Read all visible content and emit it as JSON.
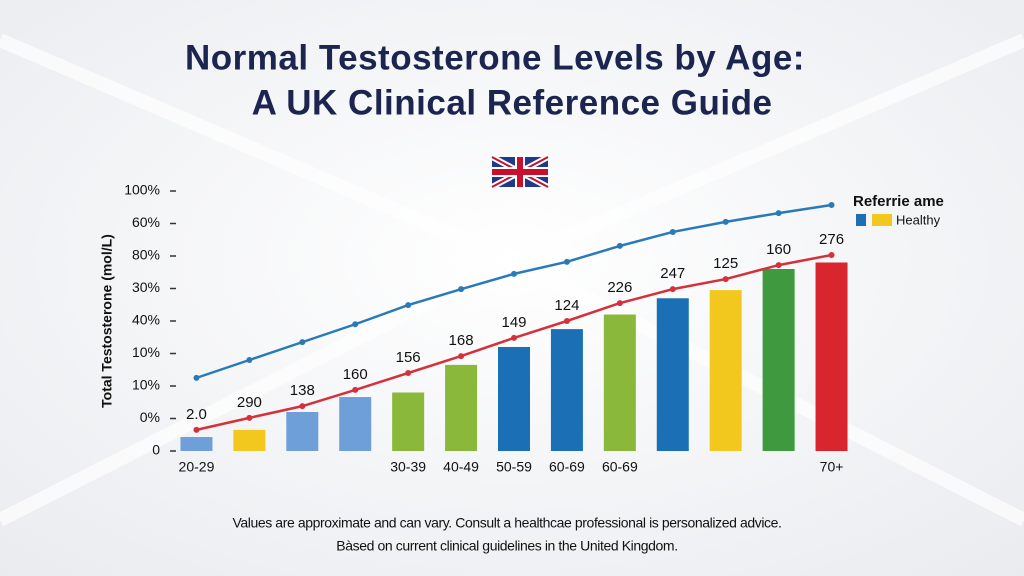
{
  "chart_data": {
    "type": "bar",
    "title": "Normal Testosterone Levels by Age:",
    "subtitle": "A UK Clinical Reference Guide",
    "y_label": "Total Testosterone (mol/L)",
    "categories": [
      "20-29",
      null,
      null,
      null,
      "30-39",
      "40-49",
      "50-59",
      "60-69",
      "60-69",
      null,
      null,
      null,
      "70+"
    ],
    "ylim": [
      0,
      8
    ],
    "yticks": [
      {
        "value": 0,
        "label": "0"
      },
      {
        "value": 1,
        "label": "0%"
      },
      {
        "value": 2,
        "label": "10%"
      },
      {
        "value": 3,
        "label": "10%"
      },
      {
        "value": 4,
        "label": "40%"
      },
      {
        "value": 5,
        "label": "30%"
      },
      {
        "value": 6,
        "label": "80%"
      },
      {
        "value": 7,
        "label": "60%"
      },
      {
        "value": 8,
        "label": "100%"
      }
    ],
    "series": [
      {
        "type": "bar",
        "colors": [
          "#6f9fd8",
          "#f2c81e",
          "#6f9fd8",
          "#6f9fd8",
          "#8ab83a",
          "#8ab83a",
          "#1a6fb5",
          "#1a6fb5",
          "#8ab83a",
          "#1a6fb5",
          "#f2c81e",
          "#3f9a3f",
          "#d9262e"
        ],
        "values": [
          0.43,
          0.65,
          1.2,
          1.66,
          1.8,
          2.65,
          3.2,
          3.75,
          4.2,
          4.7,
          4.95,
          5.6,
          5.8
        ]
      },
      {
        "type": "line",
        "color": "#d4313a",
        "values": [
          0.65,
          1.02,
          1.38,
          1.88,
          2.4,
          2.92,
          3.48,
          4.0,
          4.55,
          4.98,
          5.29,
          5.72,
          6.03
        ]
      },
      {
        "type": "line",
        "color": "#2a7ab8",
        "values": [
          2.25,
          2.8,
          3.35,
          3.9,
          4.49,
          4.98,
          5.45,
          5.82,
          6.31,
          6.74,
          7.05,
          7.32,
          7.57
        ]
      }
    ],
    "data_labels": [
      "2.0",
      "290",
      "138",
      "160",
      "156",
      "168",
      "149",
      "124",
      "226",
      "247",
      "125",
      "160",
      "276"
    ],
    "legend": {
      "title": "Referrie ame",
      "label": "Healthy",
      "colors": [
        "#1a6fb5",
        "#f2c81e"
      ]
    },
    "footnotes": [
      "Values are approximate and can vary. Consult a healthcae professional is personalized advice.",
      "Bàsed on current clinical guidelines in the United Kingdom."
    ]
  }
}
